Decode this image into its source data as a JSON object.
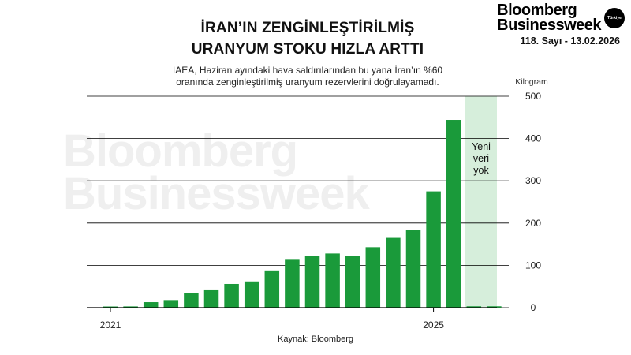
{
  "header": {
    "title_line1": "İRAN’IN ZENGİNLEŞTİRİLMİŞ",
    "title_line2": "URANYUM STOKU HIZLA ARTTI",
    "subtitle_line1": "IAEA, Haziran ayındaki hava saldırılarından bu yana İran’ın %60",
    "subtitle_line2": "oranında zenginleştirilmiş uranyum rezervlerini doğrulayamadı."
  },
  "brand": {
    "line1": "Bloomberg",
    "line2": "Businessweek",
    "badge": "Türkiye",
    "issue": "118. Sayı - 13.02.2026"
  },
  "watermark": {
    "line1": "Bloomberg",
    "line2": "Businessweek"
  },
  "source": "Kaynak: Bloomberg",
  "colors": {
    "bar": "#1a9a3a",
    "no_data_band": "#d6eedb",
    "grid": "#000000"
  },
  "chart_data": {
    "type": "bar",
    "ylabel": "Kilogram",
    "ylim": [
      0,
      500
    ],
    "yticks": [
      "0",
      "100",
      "200",
      "300",
      "400",
      "500"
    ],
    "xticks": [
      {
        "label": "2021",
        "index": 0
      },
      {
        "label": "2025",
        "index": 16
      }
    ],
    "values": [
      2,
      3,
      13,
      18,
      34,
      43,
      56,
      62,
      88,
      115,
      122,
      128,
      122,
      143,
      165,
      183,
      275,
      444,
      0,
      0
    ],
    "no_data_start_index": 18,
    "no_data_label": [
      "Yeni",
      "veri",
      "yok"
    ],
    "grid": true
  }
}
